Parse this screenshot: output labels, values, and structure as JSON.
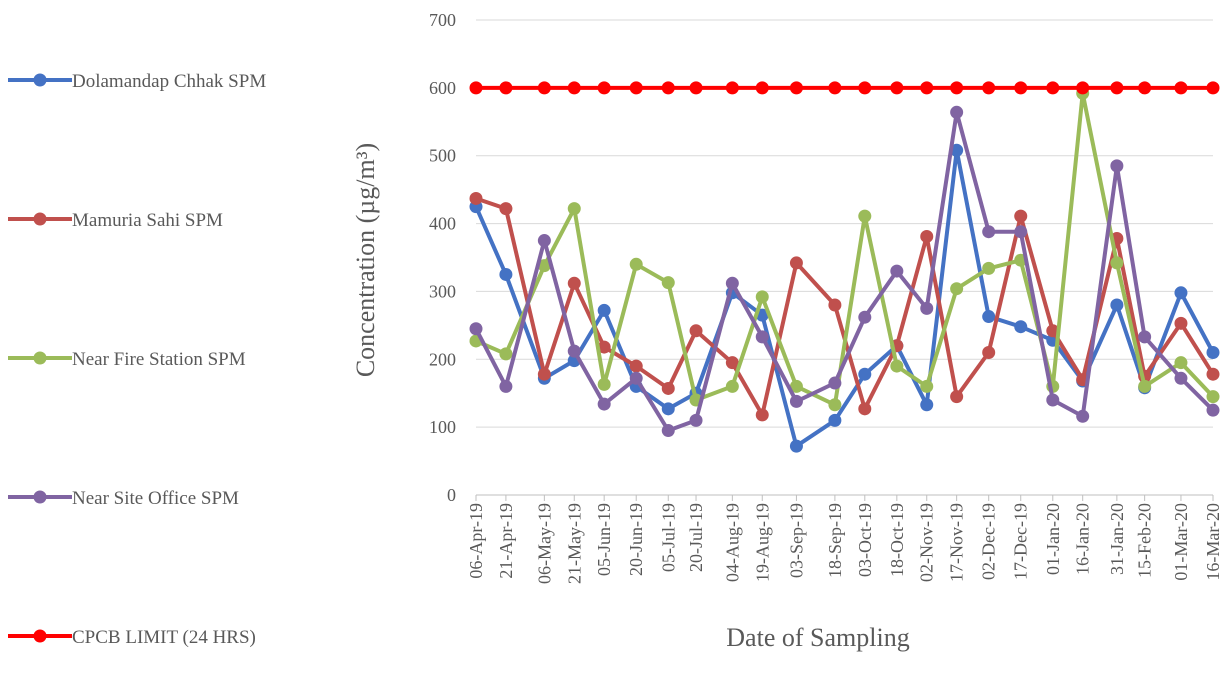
{
  "chart_data": {
    "type": "line",
    "title": "",
    "xlabel": "Date of Sampling",
    "ylabel": "Concentration  (µg/m³)",
    "ylim": [
      0,
      700
    ],
    "yticks": [
      0,
      100,
      200,
      300,
      400,
      500,
      600,
      700
    ],
    "grid": "horizontal",
    "legend_position": "left",
    "x_tick_labels": [
      "06-Apr-19",
      "21-Apr-19",
      "06-May-19",
      "21-May-19",
      "05-Jun-19",
      "20-Jun-19",
      "05-Jul-19",
      "20-Jul-19",
      "04-Aug-19",
      "19-Aug-19",
      "03-Sep-19",
      "18-Sep-19",
      "03-Oct-19",
      "18-Oct-19",
      "02-Nov-19",
      "17-Nov-19",
      "02-Dec-19",
      "17-Dec-19",
      "01-Jan-20",
      "16-Jan-20",
      "31-Jan-20",
      "15-Feb-20",
      "01-Mar-20",
      "16-Mar-20"
    ],
    "x": [
      "2019-04-06",
      "2019-04-20",
      "2019-05-08",
      "2019-05-22",
      "2019-06-05",
      "2019-06-20",
      "2019-07-05",
      "2019-07-18",
      "2019-08-04",
      "2019-08-18",
      "2019-09-03",
      "2019-09-21",
      "2019-10-05",
      "2019-10-20",
      "2019-11-03",
      "2019-11-17",
      "2019-12-02",
      "2019-12-17",
      "2020-01-01",
      "2020-01-15",
      "2020-01-31",
      "2020-02-13",
      "2020-03-01",
      "2020-03-16"
    ],
    "series": [
      {
        "name": "Dolamandap Chhak SPM",
        "color": "#4472C4",
        "values": [
          425,
          325,
          172,
          198,
          272,
          160,
          127,
          150,
          298,
          265,
          72,
          110,
          178,
          220,
          133,
          508,
          263,
          248,
          228,
          168,
          280,
          158,
          298,
          210
        ]
      },
      {
        "name": "Mamuria Sahi SPM",
        "color": "#C0504D",
        "values": [
          437,
          422,
          178,
          312,
          218,
          190,
          157,
          242,
          195,
          118,
          342,
          280,
          127,
          220,
          381,
          145,
          210,
          411,
          242,
          170,
          378,
          175,
          253,
          178
        ]
      },
      {
        "name": "Near Fire Station SPM",
        "color": "#9BBB59",
        "values": [
          227,
          208,
          338,
          422,
          163,
          340,
          313,
          140,
          160,
          292,
          160,
          133,
          411,
          190,
          160,
          304,
          334,
          346,
          160,
          592,
          342,
          160,
          195,
          145
        ]
      },
      {
        "name": "Near Site Office SPM",
        "color": "#8064A2",
        "values": [
          245,
          160,
          375,
          212,
          134,
          172,
          95,
          110,
          312,
          233,
          138,
          165,
          262,
          330,
          275,
          564,
          388,
          388,
          140,
          116,
          485,
          233,
          172,
          125
        ]
      },
      {
        "name": "CPCB LIMIT (24 HRS)",
        "color": "#FF0000",
        "values": [
          600,
          600,
          600,
          600,
          600,
          600,
          600,
          600,
          600,
          600,
          600,
          600,
          600,
          600,
          600,
          600,
          600,
          600,
          600,
          600,
          600,
          600,
          600,
          600
        ]
      }
    ]
  }
}
